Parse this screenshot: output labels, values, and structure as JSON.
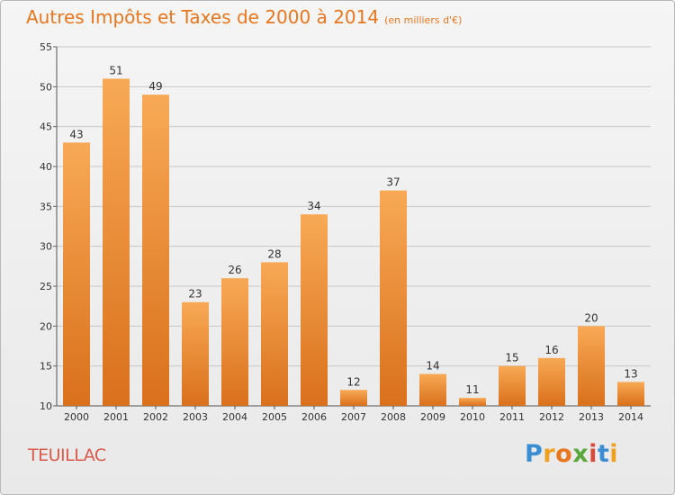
{
  "title": "Autres Impôts et Taxes de 2000 à 2014",
  "title_unit": "(en milliers d'€)",
  "commune": "TEUILLAC",
  "brand": [
    "P",
    "r",
    "o",
    "x",
    "i",
    "t",
    "i"
  ],
  "colors": {
    "bar_light": "#f8a955",
    "bar_dark": "#d9701c",
    "title": "#e8761e",
    "commune": "#d95a4a"
  },
  "chart_data": {
    "type": "bar",
    "title": "Autres Impôts et Taxes de 2000 à 2014",
    "subtitle": "(en milliers d'€)",
    "xlabel": "",
    "ylabel": "",
    "ylim": [
      10,
      55
    ],
    "yticks": [
      10,
      15,
      20,
      25,
      30,
      35,
      40,
      45,
      50,
      55
    ],
    "grid": true,
    "categories": [
      "2000",
      "2001",
      "2002",
      "2003",
      "2004",
      "2005",
      "2006",
      "2007",
      "2008",
      "2009",
      "2010",
      "2011",
      "2012",
      "2013",
      "2014"
    ],
    "values": [
      43,
      51,
      49,
      23,
      26,
      28,
      34,
      12,
      37,
      14,
      11,
      15,
      16,
      20,
      13
    ]
  }
}
